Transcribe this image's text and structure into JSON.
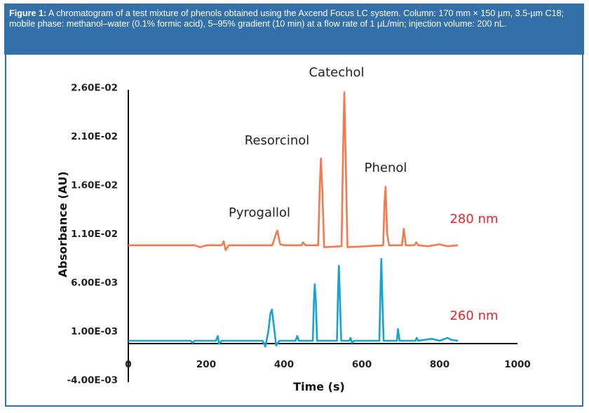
{
  "caption": {
    "label": "Figure 1:",
    "text": " A chromatogram of a test mixture of phenols obtained using the Axcend Focus LC system. Column: 170 mm × 150 µm, 3.5-µm C18; mobile phase: methanol–water (0.1% formic acid), 5–95% gradient (10 min) at a flow rate of 1 µL/min; injection volume: 200 nL."
  },
  "colors": {
    "caption_bg": "#3471aa",
    "series_280": "#f5794f",
    "series_260": "#16a3d4",
    "wavelength_label": "#e8232d"
  },
  "chart_data": {
    "type": "line",
    "xlabel": "Time (s)",
    "ylabel": "Absorbance (AU)",
    "xlim": [
      0,
      1000
    ],
    "ylim": [
      -0.004,
      0.026
    ],
    "x_ticks": [
      "0",
      "200",
      "400",
      "600",
      "800",
      "1000"
    ],
    "y_ticks": [
      "2.60E-02",
      "2.10E-02",
      "1.60E-02",
      "1.10E-02",
      "6.00E-03",
      "1.00E-03",
      "-4.00E-03"
    ],
    "grid": false,
    "annotations": [
      {
        "text": "Catechol",
        "x": 555,
        "y": 0.0255
      },
      {
        "text": "Resorcinol",
        "x": 495,
        "y": 0.0187
      },
      {
        "text": "Phenol",
        "x": 661,
        "y": 0.0158
      },
      {
        "text": "Pyrogallol",
        "x": 382,
        "y": 0.0113
      }
    ],
    "series": [
      {
        "name": "280 nm",
        "points": [
          [
            0,
            0.0098
          ],
          [
            170,
            0.0098
          ],
          [
            185,
            0.0096
          ],
          [
            200,
            0.0098
          ],
          [
            240,
            0.0098
          ],
          [
            245,
            0.0102
          ],
          [
            250,
            0.0093
          ],
          [
            258,
            0.0098
          ],
          [
            370,
            0.0098
          ],
          [
            378,
            0.0108
          ],
          [
            383,
            0.0113
          ],
          [
            390,
            0.0099
          ],
          [
            400,
            0.0098
          ],
          [
            445,
            0.0098
          ],
          [
            449,
            0.0101
          ],
          [
            455,
            0.0098
          ],
          [
            488,
            0.0098
          ],
          [
            492,
            0.016
          ],
          [
            495,
            0.0187
          ],
          [
            499,
            0.015
          ],
          [
            503,
            0.0096
          ],
          [
            548,
            0.0097
          ],
          [
            552,
            0.02
          ],
          [
            555,
            0.0255
          ],
          [
            559,
            0.018
          ],
          [
            563,
            0.0096
          ],
          [
            655,
            0.0098
          ],
          [
            658,
            0.014
          ],
          [
            661,
            0.0158
          ],
          [
            665,
            0.011
          ],
          [
            670,
            0.0098
          ],
          [
            703,
            0.0098
          ],
          [
            708,
            0.0115
          ],
          [
            713,
            0.0098
          ],
          [
            735,
            0.0098
          ],
          [
            740,
            0.0101
          ],
          [
            745,
            0.0098
          ],
          [
            770,
            0.0097
          ],
          [
            800,
            0.0099
          ],
          [
            820,
            0.0097
          ],
          [
            847,
            0.0098
          ]
        ]
      },
      {
        "name": "260 nm",
        "points": [
          [
            0,
            0
          ],
          [
            160,
            0
          ],
          [
            165,
            -0.0002
          ],
          [
            170,
            0
          ],
          [
            225,
            0
          ],
          [
            230,
            0.0005
          ],
          [
            233,
            -0.0003
          ],
          [
            240,
            0
          ],
          [
            345,
            0
          ],
          [
            352,
            -0.0006
          ],
          [
            360,
            0.001
          ],
          [
            365,
            0.0028
          ],
          [
            369,
            0.0032
          ],
          [
            374,
            0.0015
          ],
          [
            380,
            -0.0005
          ],
          [
            388,
            0
          ],
          [
            430,
            0
          ],
          [
            434,
            0.0005
          ],
          [
            438,
            0
          ],
          [
            474,
            0
          ],
          [
            477,
            0.004
          ],
          [
            479,
            0.0058
          ],
          [
            482,
            0.004
          ],
          [
            485,
            0
          ],
          [
            536,
            0
          ],
          [
            539,
            0.005
          ],
          [
            541,
            0.0077
          ],
          [
            544,
            0.004
          ],
          [
            547,
            0
          ],
          [
            568,
            0
          ],
          [
            571,
            0.0003
          ],
          [
            575,
            -0.0002
          ],
          [
            580,
            0
          ],
          [
            645,
            0
          ],
          [
            648,
            0.005
          ],
          [
            650,
            0.0084
          ],
          [
            653,
            0.004
          ],
          [
            656,
            0
          ],
          [
            690,
            0
          ],
          [
            693,
            0.0012
          ],
          [
            697,
            0
          ],
          [
            738,
            0
          ],
          [
            741,
            0.0003
          ],
          [
            745,
            0
          ],
          [
            780,
            0.0002
          ],
          [
            800,
            0
          ],
          [
            820,
            0.0003
          ],
          [
            830,
            0.0001
          ],
          [
            847,
            0
          ]
        ]
      }
    ]
  }
}
